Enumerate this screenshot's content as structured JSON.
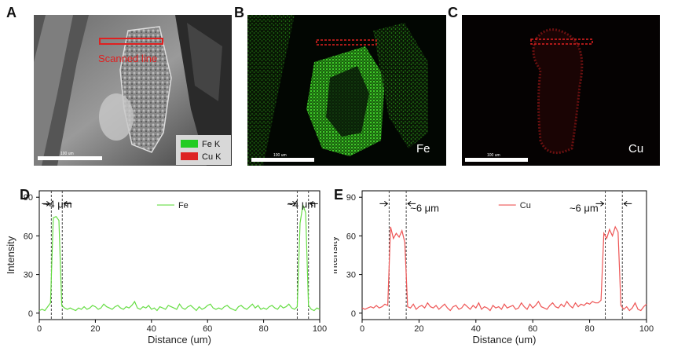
{
  "panels": {
    "a": {
      "label": "A",
      "annotation": "Scanned line",
      "scale": "100 um",
      "legend": [
        {
          "name": "Fe K",
          "color": "#22cc22"
        },
        {
          "name": "Cu K",
          "color": "#dd2222"
        }
      ]
    },
    "b": {
      "label": "B",
      "element": "Fe",
      "scale": "100 um",
      "color": "#22cc22"
    },
    "c": {
      "label": "C",
      "element": "Cu",
      "scale": "100 um",
      "color": "#aa1a1a"
    },
    "d": {
      "label": "D"
    },
    "e": {
      "label": "E"
    }
  },
  "chart_data": [
    {
      "type": "line",
      "panel": "D",
      "xlabel": "Distance (um)",
      "ylabel": "Intensity",
      "xlim": [
        0,
        100
      ],
      "ylim": [
        -5,
        95
      ],
      "xticks": [
        0,
        20,
        40,
        60,
        80,
        100
      ],
      "yticks": [
        0,
        30,
        60,
        90
      ],
      "color": "#66dd44",
      "series": [
        {
          "name": "Fe",
          "x": [
            0,
            1,
            2,
            3,
            4,
            5,
            6,
            7,
            8,
            9,
            10,
            11,
            12,
            13,
            14,
            15,
            16,
            17,
            18,
            19,
            20,
            21,
            22,
            23,
            24,
            25,
            26,
            27,
            28,
            29,
            30,
            31,
            32,
            33,
            34,
            35,
            36,
            37,
            38,
            39,
            40,
            41,
            42,
            43,
            44,
            45,
            46,
            47,
            48,
            49,
            50,
            51,
            52,
            53,
            54,
            55,
            56,
            57,
            58,
            59,
            60,
            61,
            62,
            63,
            64,
            65,
            66,
            67,
            68,
            69,
            70,
            71,
            72,
            73,
            74,
            75,
            76,
            77,
            78,
            79,
            80,
            81,
            82,
            83,
            84,
            85,
            86,
            87,
            88,
            89,
            90,
            91,
            92,
            93,
            94,
            95,
            96,
            97,
            98,
            99,
            100
          ],
          "y": [
            2,
            3,
            2,
            5,
            8,
            74,
            75,
            72,
            6,
            4,
            3,
            4,
            3,
            2,
            4,
            3,
            5,
            3,
            4,
            6,
            5,
            3,
            4,
            7,
            5,
            4,
            3,
            5,
            6,
            4,
            3,
            5,
            4,
            6,
            9,
            4,
            3,
            5,
            4,
            6,
            3,
            4,
            2,
            5,
            4,
            3,
            6,
            5,
            4,
            3,
            7,
            4,
            3,
            5,
            6,
            4,
            2,
            5,
            3,
            4,
            6,
            7,
            4,
            3,
            4,
            3,
            5,
            6,
            4,
            3,
            2,
            5,
            6,
            4,
            3,
            5,
            7,
            4,
            6,
            3,
            4,
            3,
            5,
            6,
            4,
            3,
            6,
            4,
            5,
            7,
            4,
            3,
            5,
            70,
            84,
            78,
            6,
            3,
            2,
            4,
            3
          ]
        }
      ],
      "annotations": [
        {
          "text": "~4 μm",
          "x": 6.5,
          "y": 85
        },
        {
          "text": "~4 μm",
          "x": 93.5,
          "y": 85
        }
      ],
      "markers_x": [
        4.3,
        8.2,
        92,
        96
      ]
    },
    {
      "type": "line",
      "panel": "E",
      "xlabel": "Distance (um)",
      "ylabel": "Intensity",
      "xlim": [
        0,
        100
      ],
      "ylim": [
        -5,
        95
      ],
      "xticks": [
        0,
        20,
        40,
        60,
        80,
        100
      ],
      "yticks": [
        0,
        30,
        60,
        90
      ],
      "color": "#ee5555",
      "series": [
        {
          "name": "Cu",
          "x": [
            0,
            1,
            2,
            3,
            4,
            5,
            6,
            7,
            8,
            9,
            10,
            11,
            12,
            13,
            14,
            15,
            16,
            17,
            18,
            19,
            20,
            21,
            22,
            23,
            24,
            25,
            26,
            27,
            28,
            29,
            30,
            31,
            32,
            33,
            34,
            35,
            36,
            37,
            38,
            39,
            40,
            41,
            42,
            43,
            44,
            45,
            46,
            47,
            48,
            49,
            50,
            51,
            52,
            53,
            54,
            55,
            56,
            57,
            58,
            59,
            60,
            61,
            62,
            63,
            64,
            65,
            66,
            67,
            68,
            69,
            70,
            71,
            72,
            73,
            74,
            75,
            76,
            77,
            78,
            79,
            80,
            81,
            82,
            83,
            84,
            85,
            86,
            87,
            88,
            89,
            90,
            91,
            92,
            93,
            94,
            95,
            96,
            97,
            98,
            99,
            100
          ],
          "y": [
            4,
            3,
            4,
            5,
            4,
            6,
            4,
            5,
            7,
            6,
            67,
            58,
            62,
            59,
            64,
            55,
            5,
            4,
            7,
            3,
            5,
            6,
            4,
            8,
            5,
            4,
            6,
            3,
            5,
            7,
            4,
            2,
            5,
            6,
            3,
            4,
            7,
            5,
            3,
            6,
            4,
            8,
            3,
            5,
            4,
            2,
            6,
            4,
            5,
            3,
            7,
            4,
            5,
            6,
            3,
            4,
            8,
            5,
            3,
            7,
            4,
            6,
            9,
            5,
            4,
            3,
            6,
            8,
            5,
            4,
            7,
            5,
            9,
            6,
            4,
            8,
            5,
            7,
            6,
            8,
            7,
            9,
            8,
            8,
            10,
            62,
            58,
            65,
            60,
            67,
            63,
            6,
            3,
            5,
            2,
            4,
            8,
            3,
            2,
            5,
            7
          ]
        }
      ],
      "annotations": [
        {
          "text": "~6 μm",
          "x": 22,
          "y": 82
        },
        {
          "text": "~6 μm",
          "x": 78,
          "y": 82
        }
      ],
      "markers_x": [
        9.5,
        15.5,
        85.5,
        91.5
      ]
    }
  ]
}
